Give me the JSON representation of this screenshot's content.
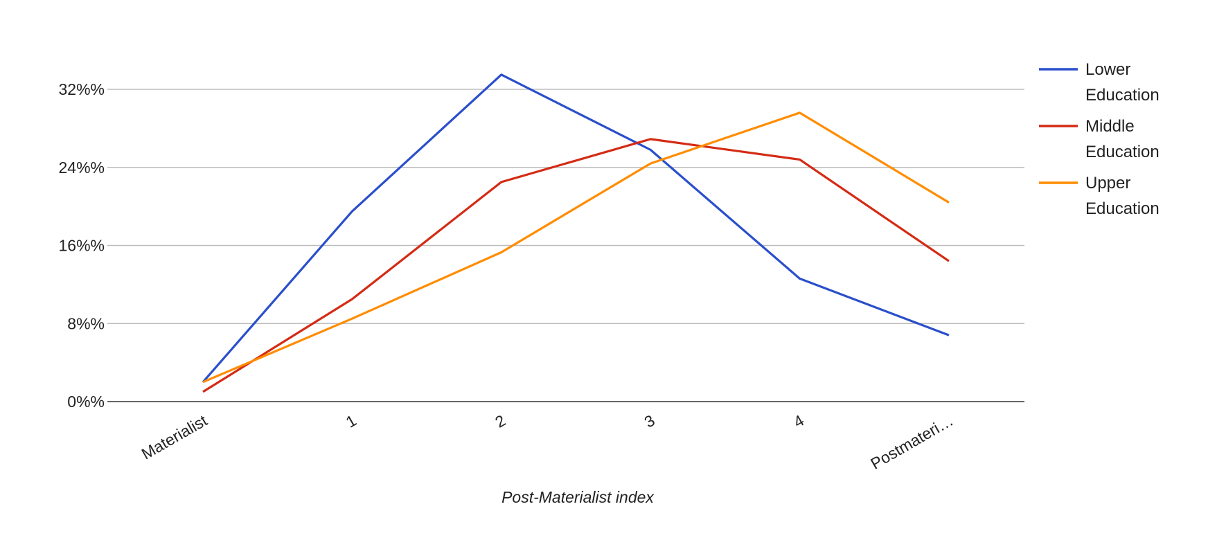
{
  "chart_data": {
    "type": "line",
    "title": "",
    "xlabel": "Post-Materialist index",
    "ylabel": "",
    "categories": [
      "Materialist",
      "1",
      "2",
      "3",
      "4",
      "Postmateri…"
    ],
    "y_ticks": [
      "0%%",
      "8%%",
      "16%%",
      "24%%",
      "32%%"
    ],
    "y_tick_values": [
      0,
      8,
      16,
      24,
      32
    ],
    "ylim": [
      0,
      32
    ],
    "grid": true,
    "legend_position": "right",
    "series": [
      {
        "name_line1": "Lower",
        "name_line2": "Education",
        "name": "Lower Education",
        "color": "#2a4fcb",
        "values": [
          2.0,
          19.5,
          33.5,
          25.8,
          12.6,
          6.8
        ]
      },
      {
        "name_line1": "Middle",
        "name_line2": "Education",
        "name": "Middle Education",
        "color": "#d42b14",
        "values": [
          1.0,
          10.5,
          22.5,
          26.9,
          24.8,
          14.4
        ]
      },
      {
        "name_line1": "Upper",
        "name_line2": "Education",
        "name": "Upper Education",
        "color": "#ff8c00",
        "values": [
          2.0,
          8.5,
          15.3,
          24.4,
          29.6,
          20.4
        ]
      }
    ]
  }
}
